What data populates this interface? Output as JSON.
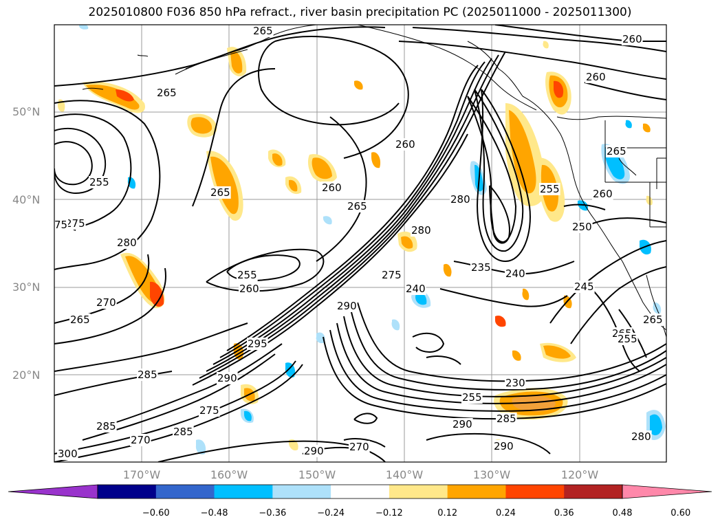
{
  "title": "2025010800 F036 850 hPa refract., river basin precipitation PC (2025011000 - 2025011300)",
  "lat_ticks": [
    "50°N",
    "40°N",
    "30°N",
    "20°N"
  ],
  "lon_ticks": [
    "170°W",
    "160°W",
    "150°W",
    "140°W",
    "130°W",
    "120°W"
  ],
  "colorbar": {
    "tick_labels": [
      "−0.60",
      "−0.48",
      "−0.36",
      "−0.24",
      "−0.12",
      "0.12",
      "0.24",
      "0.36",
      "0.48",
      "0.60"
    ],
    "colors": [
      "#9933cc",
      "#00008b",
      "#3366cc",
      "#00bfff",
      "#aee1fa",
      "#ffffff",
      "#ffe88a",
      "#ffa500",
      "#ff4500",
      "#b22222",
      "#ff88aa"
    ]
  },
  "contour_labels": [
    "265",
    "265",
    "260",
    "260",
    "260",
    "265",
    "255",
    "255",
    "265",
    "260",
    "265",
    "280",
    "280",
    "275",
    "270",
    "265",
    "255",
    "260",
    "290",
    "280",
    "275",
    "240",
    "235",
    "240",
    "245",
    "260",
    "250",
    "265",
    "295",
    "285",
    "285",
    "290",
    "230",
    "255",
    "290",
    "285",
    "290",
    "290",
    "285",
    "270",
    "275",
    "270",
    "300",
    "280",
    "255",
    "265",
    "75"
  ]
}
